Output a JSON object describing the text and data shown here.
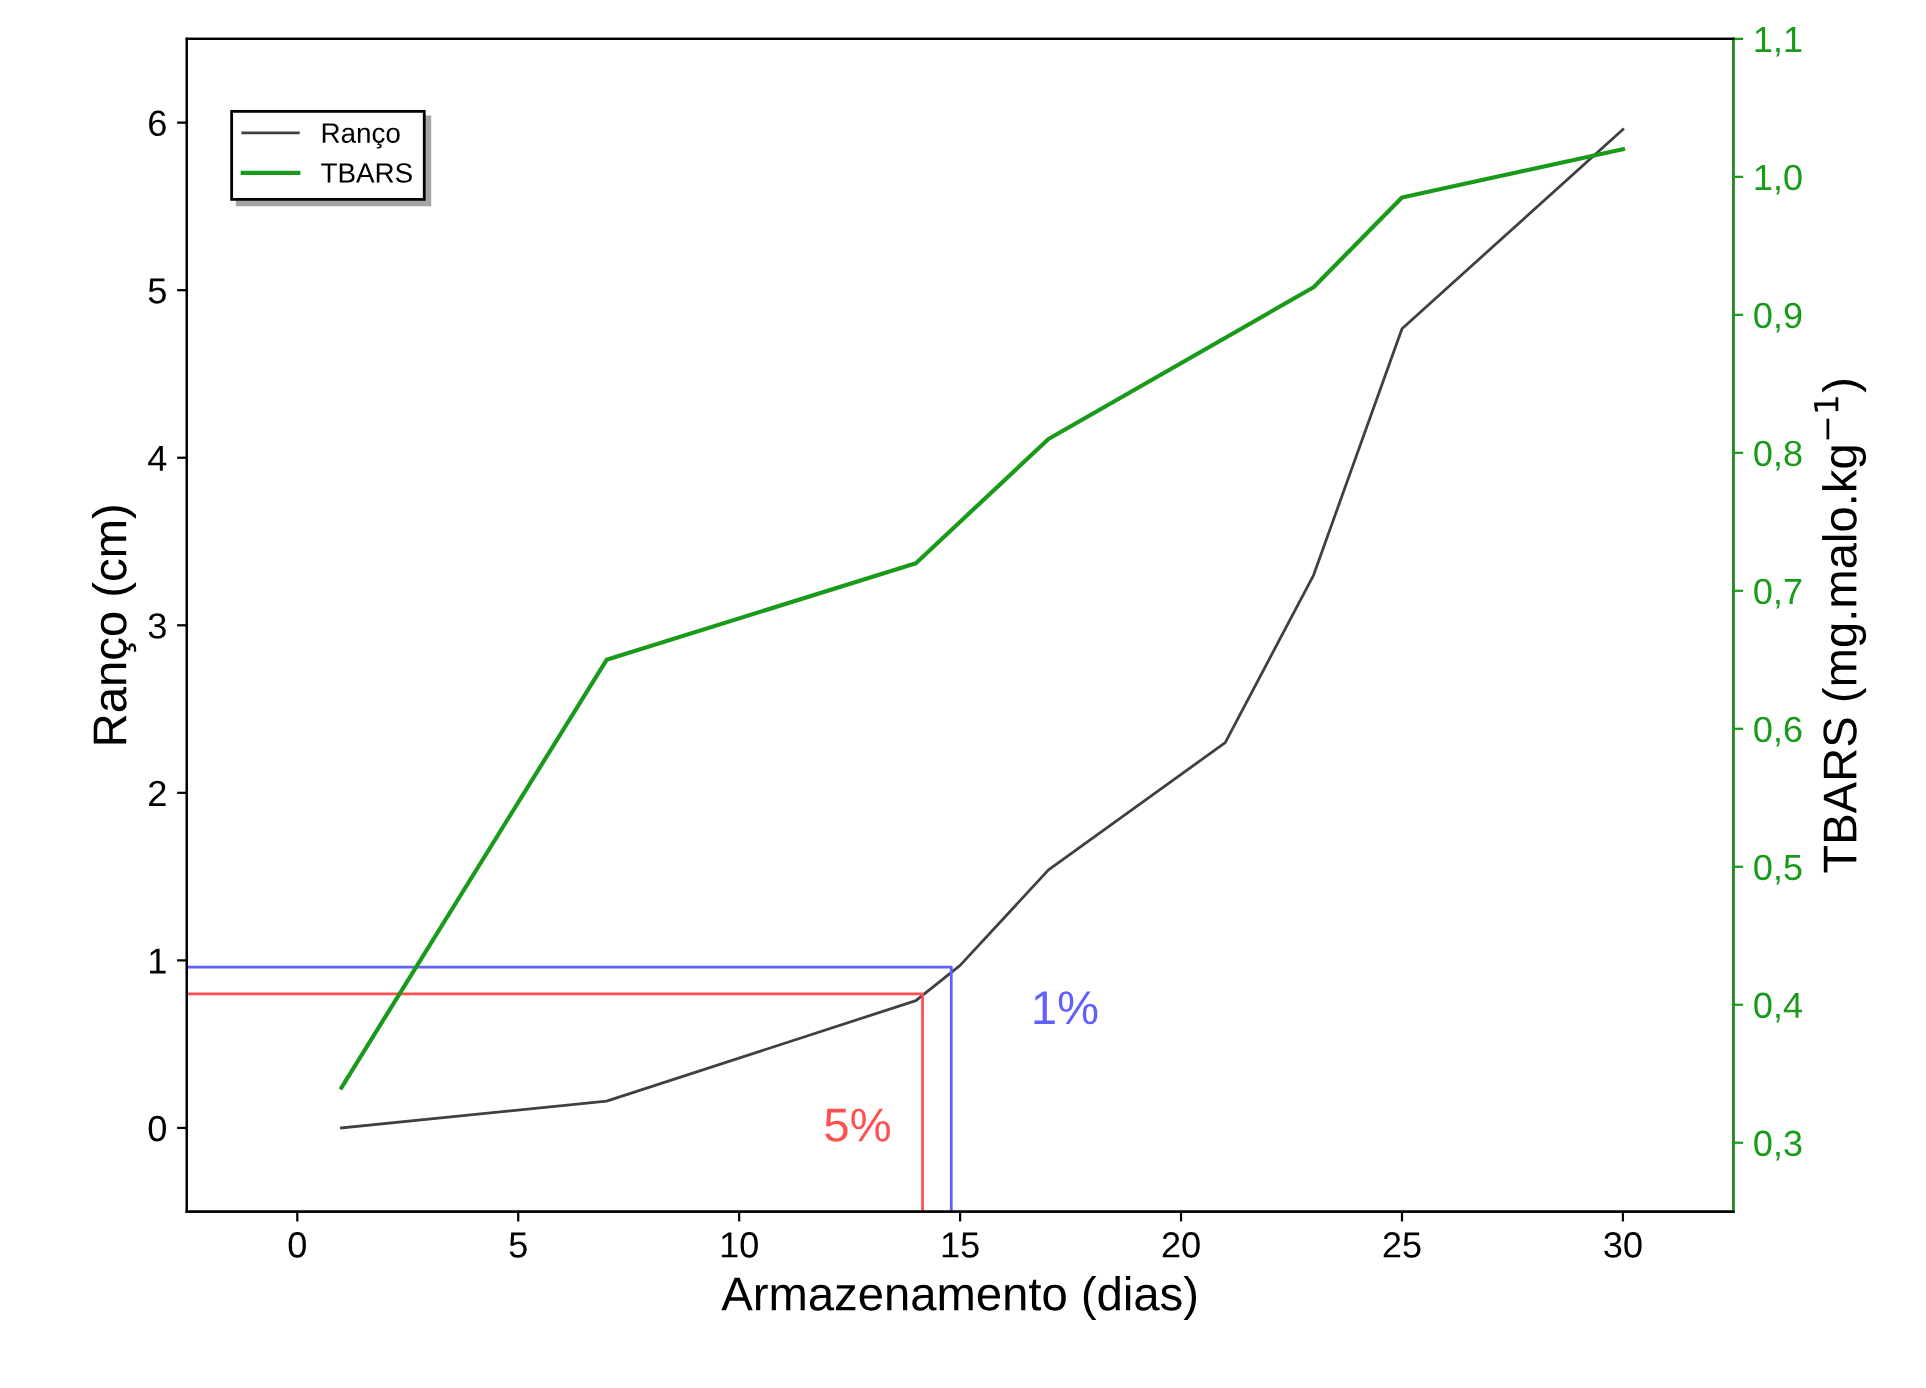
{
  "chart_data": {
    "type": "line",
    "xlabel": "Armazenamento (dias)",
    "ylabel": "Ranço (cm)",
    "y2label": "TBARS (mg.malo.kg$^{−1}$)",
    "xlim": [
      -2.5,
      32.5
    ],
    "xticks": [
      0,
      5,
      10,
      15,
      20,
      25,
      30
    ],
    "ylim": [
      -0.5,
      6.5
    ],
    "yticks": [
      0,
      1,
      2,
      3,
      4,
      5,
      6
    ],
    "y2lim": [
      0.25,
      1.1
    ],
    "y2ticks": [
      {
        "value": 0.3,
        "label": "0,3"
      },
      {
        "value": 0.4,
        "label": "0,4"
      },
      {
        "value": 0.5,
        "label": "0,5"
      },
      {
        "value": 0.6,
        "label": "0,6"
      },
      {
        "value": 0.7,
        "label": "0,7"
      },
      {
        "value": 0.8,
        "label": "0,8"
      },
      {
        "value": 0.9,
        "label": "0,9"
      },
      {
        "value": 1.0,
        "label": "1,0"
      },
      {
        "value": 1.1,
        "label": "1,1"
      }
    ],
    "legend": "top left",
    "grid": false,
    "series": [
      {
        "name": "Ranço",
        "color": "#404040",
        "x": [
          1,
          7,
          14,
          15,
          17,
          21,
          23,
          25,
          30
        ],
        "values": [
          0,
          0.16,
          0.76,
          0.97,
          1.54,
          2.3,
          3.3,
          4.77,
          5.96
        ]
      },
      {
        "name": "TBARS",
        "color": "#1a9a1a",
        "axis": "y2",
        "x": [
          1,
          7,
          14,
          17,
          23,
          25,
          30
        ],
        "values": [
          0.34,
          0.65,
          0.72,
          0.81,
          0.92,
          0.985,
          1.02
        ]
      },
      {
        "color": "#6060ff",
        "x": [
          -2.5,
          14.8,
          14.8
        ],
        "values": [
          0.96,
          0.96,
          -0.5
        ]
      },
      {
        "color": "#ff5050",
        "x": [
          -2.5,
          14.15,
          14.15
        ],
        "values": [
          0.8,
          0.8,
          -0.5
        ]
      }
    ],
    "annotations": [
      "1%",
      "5%"
    ]
  }
}
